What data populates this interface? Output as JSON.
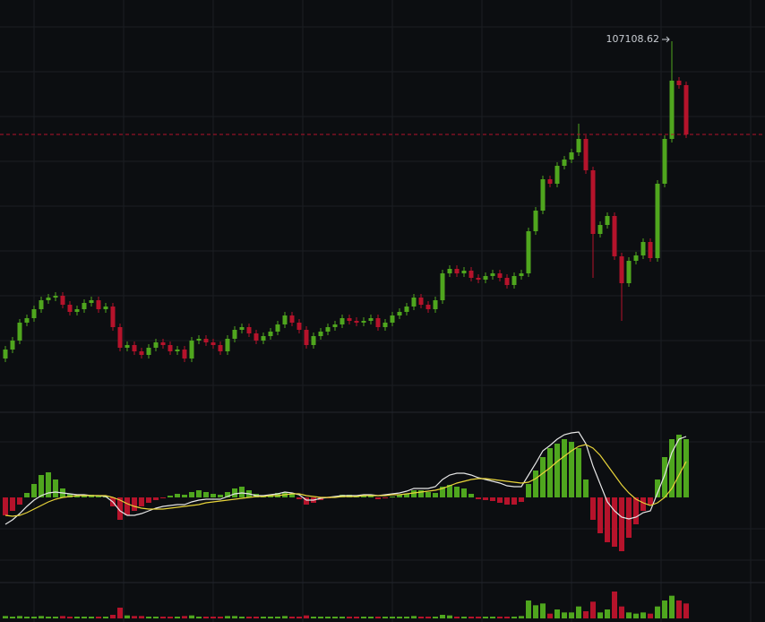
{
  "chart_data": [
    {
      "type": "candlestick",
      "up_color": "#4fa61e",
      "down_color": "#b5132b",
      "ylim": [
        45000,
        114000
      ],
      "open": [
        54000,
        55500,
        57000,
        60000,
        60750,
        62250,
        63750,
        64200,
        64500,
        63000,
        61800,
        62250,
        63300,
        63750,
        62250,
        62700,
        59250,
        55800,
        56250,
        55200,
        54600,
        55800,
        56700,
        56250,
        55200,
        55500,
        54000,
        57000,
        57300,
        56700,
        56250,
        55200,
        57300,
        58800,
        59250,
        58200,
        57000,
        57750,
        58500,
        59700,
        61200,
        60000,
        58800,
        56250,
        57750,
        58500,
        59250,
        59700,
        60750,
        60300,
        60000,
        60300,
        60750,
        59250,
        60000,
        61200,
        61800,
        62700,
        64200,
        63000,
        62250,
        63750,
        68250,
        69000,
        68250,
        68700,
        67500,
        67200,
        67800,
        68250,
        67500,
        66300,
        67800,
        68250,
        75300,
        78750,
        84000,
        83250,
        86250,
        87300,
        88500,
        90750,
        85500,
        74850,
        76350,
        77850,
        71100,
        66600,
        70350,
        71250,
        73500,
        70800,
        83250,
        90750,
        100500,
        99750
      ],
      "high": [
        56100,
        57600,
        60600,
        61350,
        62850,
        64350,
        64800,
        65100,
        65100,
        63600,
        62850,
        63900,
        64350,
        64350,
        63300,
        63300,
        59850,
        56850,
        56850,
        55800,
        56400,
        57300,
        57300,
        56850,
        56100,
        56100,
        57600,
        57900,
        57900,
        57300,
        56850,
        57900,
        59400,
        59850,
        59850,
        58800,
        58350,
        59100,
        60300,
        61800,
        61800,
        60600,
        59400,
        58350,
        59100,
        59850,
        60300,
        61350,
        61350,
        60900,
        60900,
        61350,
        61350,
        60600,
        61800,
        62400,
        63300,
        64800,
        64800,
        63600,
        64350,
        68850,
        69600,
        69600,
        69300,
        69300,
        68100,
        68400,
        68850,
        68850,
        68100,
        68400,
        68850,
        75900,
        79350,
        84600,
        84600,
        86850,
        87900,
        89100,
        93300,
        91350,
        86100,
        76950,
        78450,
        78450,
        71700,
        70950,
        71850,
        74100,
        74100,
        83850,
        91350,
        107108.62,
        101100,
        100350
      ],
      "low": [
        53400,
        54900,
        56400,
        59400,
        60150,
        61650,
        63150,
        63600,
        62400,
        61200,
        61200,
        61650,
        62700,
        61650,
        61650,
        58650,
        55200,
        55200,
        54600,
        54000,
        54000,
        55200,
        55650,
        54600,
        54600,
        53400,
        53400,
        56400,
        56100,
        55650,
        54600,
        54600,
        56700,
        58200,
        57600,
        56400,
        56400,
        57150,
        57900,
        59100,
        59400,
        58200,
        55650,
        55650,
        57150,
        57900,
        58650,
        59100,
        59700,
        59400,
        59400,
        59700,
        58650,
        58650,
        59400,
        60600,
        61200,
        62100,
        62400,
        61650,
        61650,
        63150,
        67650,
        67650,
        67650,
        66900,
        66600,
        66600,
        67200,
        66900,
        65700,
        65700,
        67200,
        67650,
        74700,
        78150,
        82650,
        82650,
        85650,
        86700,
        87900,
        84900,
        67500,
        74250,
        75750,
        70500,
        60300,
        66000,
        69750,
        70650,
        70200,
        70200,
        82650,
        90150,
        99150,
        90900
      ],
      "close": [
        55500,
        57000,
        60000,
        60750,
        62250,
        63750,
        64200,
        64500,
        63000,
        61800,
        62250,
        63300,
        63750,
        62250,
        62700,
        59250,
        55800,
        56250,
        55200,
        54600,
        55800,
        56700,
        56250,
        55200,
        55500,
        54000,
        57000,
        57300,
        56700,
        56250,
        55200,
        57300,
        58800,
        59250,
        58200,
        57000,
        57750,
        58500,
        59700,
        61200,
        60000,
        58800,
        56250,
        57750,
        58500,
        59250,
        59700,
        60750,
        60300,
        60000,
        60300,
        60750,
        59250,
        60000,
        61200,
        61800,
        62700,
        64200,
        63000,
        62250,
        63750,
        68250,
        69000,
        68250,
        68700,
        67500,
        67200,
        67800,
        68250,
        67500,
        66300,
        67800,
        68250,
        75300,
        78750,
        84000,
        83250,
        86250,
        87300,
        88500,
        90750,
        85500,
        74850,
        76350,
        77850,
        71100,
        66600,
        70350,
        71250,
        73500,
        70800,
        83250,
        90750,
        100500,
        99750,
        91500
      ]
    },
    {
      "type": "macd",
      "ylim": [
        -9000,
        9000
      ],
      "up_color": "#4fa61e",
      "down_color": "#b5132b",
      "histogram": [
        -2000,
        -1500,
        -800,
        500,
        1500,
        2500,
        2800,
        2000,
        1000,
        400,
        200,
        200,
        300,
        200,
        100,
        -1000,
        -2500,
        -2000,
        -1500,
        -1000,
        -600,
        -300,
        -100,
        200,
        400,
        300,
        600,
        800,
        600,
        400,
        300,
        600,
        1000,
        1200,
        800,
        400,
        200,
        300,
        500,
        600,
        400,
        -200,
        -800,
        -600,
        -300,
        -100,
        100,
        300,
        300,
        200,
        200,
        300,
        -200,
        -100,
        100,
        300,
        400,
        800,
        800,
        600,
        500,
        1200,
        1400,
        1200,
        1000,
        400,
        -200,
        -300,
        -400,
        -600,
        -800,
        -800,
        -500,
        1500,
        3000,
        4500,
        5500,
        6000,
        6500,
        6200,
        5500,
        2000,
        -2500,
        -4000,
        -5000,
        -5500,
        -6000,
        -4500,
        -3000,
        -1500,
        -800,
        2000,
        4500,
        6500,
        7000,
        6500
      ],
      "series": [
        {
          "color": "#e6e6e6",
          "values": [
            -3000,
            -2500,
            -1800,
            -1000,
            -300,
            200,
            500,
            600,
            500,
            400,
            300,
            300,
            200,
            200,
            100,
            -500,
            -1500,
            -2000,
            -2000,
            -1800,
            -1500,
            -1200,
            -1000,
            -900,
            -800,
            -800,
            -500,
            -300,
            -200,
            -200,
            -200,
            100,
            400,
            500,
            400,
            200,
            200,
            300,
            400,
            600,
            500,
            300,
            -300,
            -300,
            -100,
            0,
            100,
            200,
            200,
            200,
            300,
            300,
            200,
            300,
            400,
            500,
            700,
            1000,
            1000,
            1000,
            1200,
            2000,
            2500,
            2700,
            2700,
            2500,
            2200,
            2000,
            1800,
            1600,
            1300,
            1200,
            1200,
            2500,
            3800,
            5200,
            5800,
            6500,
            7000,
            7200,
            7300,
            6000,
            3500,
            1500,
            -500,
            -1500,
            -2200,
            -2400,
            -2200,
            -1700,
            -1500,
            500,
            2500,
            5000,
            6500,
            6800
          ]
        },
        {
          "color": "#e8d43a",
          "values": [
            -2000,
            -2100,
            -2000,
            -1700,
            -1300,
            -900,
            -500,
            -200,
            0,
            100,
            200,
            200,
            200,
            200,
            200,
            0,
            -300,
            -700,
            -1000,
            -1200,
            -1300,
            -1300,
            -1300,
            -1200,
            -1100,
            -1000,
            -900,
            -800,
            -600,
            -500,
            -400,
            -300,
            -200,
            -100,
            0,
            100,
            100,
            200,
            200,
            300,
            400,
            400,
            200,
            100,
            0,
            0,
            0,
            100,
            100,
            100,
            200,
            200,
            200,
            200,
            300,
            300,
            400,
            500,
            600,
            700,
            800,
            1000,
            1300,
            1600,
            1800,
            2000,
            2100,
            2100,
            2000,
            1900,
            1800,
            1700,
            1600,
            1700,
            2100,
            2700,
            3300,
            4000,
            4600,
            5200,
            5700,
            5900,
            5500,
            4700,
            3600,
            2500,
            1400,
            500,
            -200,
            -600,
            -900,
            -600,
            0,
            1000,
            2500,
            4000
          ]
        }
      ]
    },
    {
      "type": "bar",
      "ylim": [
        0,
        60
      ],
      "values": [
        4,
        3,
        4,
        3,
        3,
        4,
        3,
        3,
        4,
        3,
        3,
        3,
        3,
        3,
        3,
        6,
        18,
        5,
        4,
        4,
        3,
        3,
        3,
        3,
        3,
        4,
        5,
        3,
        3,
        3,
        3,
        4,
        4,
        3,
        3,
        3,
        3,
        3,
        3,
        4,
        3,
        3,
        5,
        3,
        3,
        3,
        3,
        3,
        3,
        3,
        3,
        3,
        3,
        3,
        3,
        3,
        3,
        4,
        3,
        3,
        3,
        6,
        5,
        3,
        3,
        3,
        3,
        3,
        3,
        3,
        3,
        3,
        4,
        30,
        22,
        25,
        8,
        15,
        10,
        10,
        20,
        12,
        28,
        10,
        15,
        45,
        20,
        10,
        8,
        10,
        8,
        20,
        30,
        38,
        30,
        25
      ]
    }
  ]
}
